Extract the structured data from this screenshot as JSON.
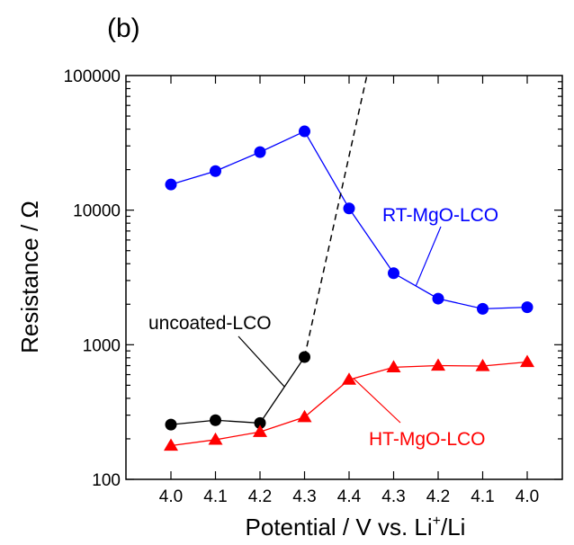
{
  "panel_label": "(b)",
  "chart_data": {
    "type": "line",
    "title": "",
    "xlabel_parts": [
      "Potential / V vs. Li",
      "+",
      "/Li"
    ],
    "ylabel": "Resistance / Ω",
    "yscale": "log",
    "ylim": [
      100,
      100000
    ],
    "grid": false,
    "categories": [
      "4.0",
      "4.1",
      "4.2",
      "4.3",
      "4.4",
      "4.3",
      "4.2",
      "4.1",
      "4.0"
    ],
    "y_ticks": [
      {
        "value": 100,
        "label": "100"
      },
      {
        "value": 1000,
        "label": "1000"
      },
      {
        "value": 10000,
        "label": "10000"
      },
      {
        "value": 100000,
        "label": "100000"
      }
    ],
    "series": [
      {
        "name": "RT-MgO-LCO",
        "color": "#0000ff",
        "marker": "circle",
        "values": [
          15500,
          19500,
          27000,
          38500,
          10300,
          3400,
          2200,
          1850,
          1900
        ]
      },
      {
        "name": "uncoated-LCO",
        "color": "#000000",
        "marker": "circle",
        "values": [
          255,
          275,
          262,
          810,
          null,
          null,
          null,
          null,
          null
        ]
      },
      {
        "name": "HT-MgO-LCO",
        "color": "#ff0000",
        "marker": "triangle",
        "values": [
          178,
          197,
          225,
          290,
          550,
          680,
          700,
          695,
          745
        ]
      }
    ],
    "extrapolation": {
      "series": "uncoated-LCO",
      "style": "dashed",
      "from": {
        "x_index": 3,
        "y": 810
      },
      "to_top_at_x": 4.44
    },
    "annotations": [
      {
        "text": "RT-MgO-LCO",
        "series": "RT-MgO-LCO",
        "color": "#0000ff",
        "pointer_x": 5.5
      },
      {
        "text": "uncoated-LCO",
        "series": "uncoated-LCO",
        "color": "#000000",
        "pointer_x": 2.55
      },
      {
        "text": "HT-MgO-LCO",
        "series": "HT-MgO-LCO",
        "color": "#ff0000",
        "pointer_x": 4.1
      }
    ]
  }
}
